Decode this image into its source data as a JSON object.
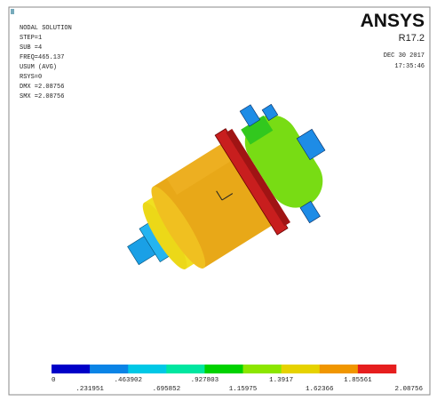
{
  "header": {
    "lines": [
      "NODAL SOLUTION",
      "STEP=1",
      "SUB =4",
      "FREQ=465.137",
      "USUM      (AVG)",
      "RSYS=0",
      "DMX =2.08756",
      "SMX =2.08756"
    ],
    "logo": "ANSYS",
    "version": "R17.2",
    "date": "DEC 30 2017",
    "time": "17:35:46"
  },
  "legend": {
    "colors": [
      "#0000c8",
      "#0a84e6",
      "#00c8e6",
      "#00e6a0",
      "#00d200",
      "#8ce600",
      "#e6d200",
      "#f09600",
      "#e61e1e"
    ],
    "upper_labels": [
      "0",
      ".463902",
      ".927803",
      "1.3917",
      "1.85561"
    ],
    "lower_labels": [
      ".231951",
      ".695852",
      "1.15975",
      "1.62366",
      "2.08756"
    ]
  }
}
